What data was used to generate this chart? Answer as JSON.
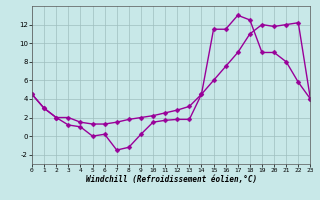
{
  "xlabel": "Windchill (Refroidissement éolien,°C)",
  "bg_color": "#c8e8e8",
  "grid_color": "#9fbfbf",
  "line_color": "#990099",
  "xmin": 0,
  "xmax": 23,
  "ymin": -3,
  "ymax": 14,
  "yticks": [
    -2,
    0,
    2,
    4,
    6,
    8,
    10,
    12
  ],
  "xticks": [
    0,
    1,
    2,
    3,
    4,
    5,
    6,
    7,
    8,
    9,
    10,
    11,
    12,
    13,
    14,
    15,
    16,
    17,
    18,
    19,
    20,
    21,
    22,
    23
  ],
  "series": [
    {
      "x": [
        0,
        1,
        2,
        3,
        4,
        5,
        6,
        7,
        8,
        9,
        10,
        11,
        12,
        13,
        14,
        15,
        16,
        17,
        18,
        19,
        20,
        21,
        22,
        23
      ],
      "y": [
        4.5,
        3.0,
        2.0,
        1.2,
        1.0,
        0.0,
        0.2,
        -1.5,
        -1.2,
        0.2,
        1.5,
        1.7,
        1.8,
        1.8,
        4.5,
        11.5,
        11.5,
        13.0,
        12.5,
        9.0,
        9.0,
        8.0,
        5.8,
        4.0
      ]
    },
    {
      "x": [
        0,
        1,
        2,
        3,
        4,
        5,
        6,
        7,
        8,
        9,
        10,
        11,
        12,
        13,
        14,
        15,
        16,
        17,
        18,
        19,
        20,
        21,
        22,
        23
      ],
      "y": [
        4.5,
        3.0,
        2.0,
        2.0,
        1.5,
        1.3,
        1.3,
        1.5,
        1.8,
        2.0,
        2.2,
        2.5,
        2.8,
        3.2,
        4.5,
        6.0,
        7.5,
        9.0,
        11.0,
        12.0,
        11.8,
        12.0,
        12.2,
        4.0
      ]
    }
  ],
  "markersize": 2.5,
  "linewidth": 1.0
}
